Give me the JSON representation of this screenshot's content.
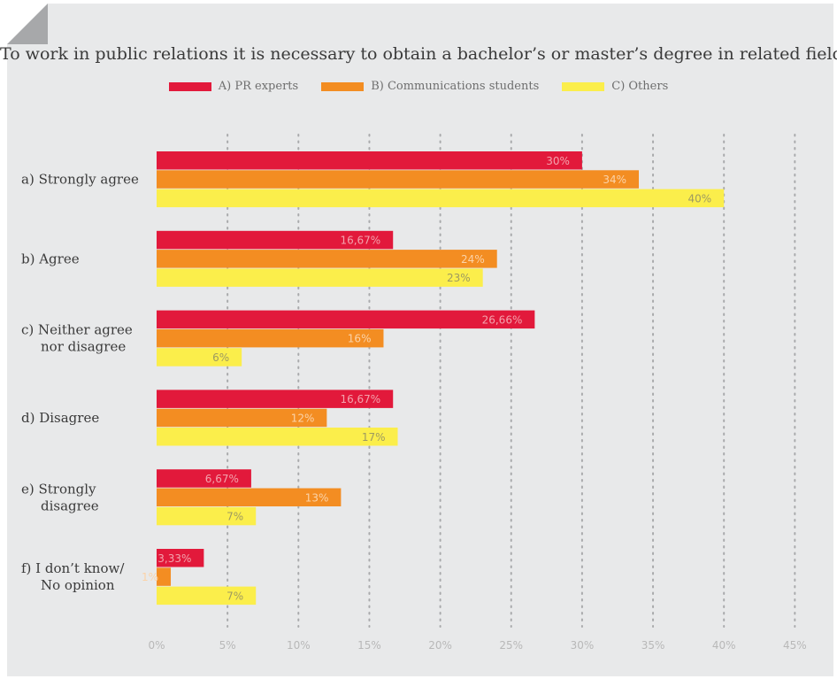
{
  "chart_data": {
    "type": "bar",
    "orientation": "horizontal",
    "title": "To work in public relations it is necessary to obtain a bachelor’s or master’s degree in related field.",
    "categories": [
      [
        "a) Strongly agree"
      ],
      [
        "b) Agree"
      ],
      [
        "c) Neither agree",
        "nor disagree"
      ],
      [
        "d) Disagree"
      ],
      [
        "e) Strongly",
        "disagree"
      ],
      [
        "f) I don’t know/",
        "No opinion"
      ]
    ],
    "series": [
      {
        "name": "A) PR experts",
        "color": "#e2193b",
        "label_color": "#f3a3ad",
        "values": [
          30,
          16.67,
          26.66,
          16.67,
          6.67,
          3.33
        ],
        "labels": [
          "30%",
          "16,67%",
          "26,66%",
          "16,67%",
          "6,67%",
          "3,33%"
        ]
      },
      {
        "name": "B) Communications students",
        "color": "#f38d22",
        "label_color": "#fbd3a8",
        "values": [
          34,
          24,
          16,
          12,
          13,
          1
        ],
        "labels": [
          "34%",
          "24%",
          "16%",
          "12%",
          "13%",
          "1%"
        ]
      },
      {
        "name": "C) Others",
        "color": "#fbee4b",
        "label_color": "#9e9a60",
        "values": [
          40,
          23,
          6,
          17,
          7,
          7
        ],
        "labels": [
          "40%",
          "23%",
          "6%",
          "17%",
          "7%",
          "7%"
        ]
      }
    ],
    "xlim": [
      0,
      45
    ],
    "xticks": [
      "0%",
      "5%",
      "10%",
      "15%",
      "20%",
      "25%",
      "30%",
      "35%",
      "40%",
      "45%"
    ],
    "grid": "vertical dotted",
    "legend_position": "top"
  }
}
